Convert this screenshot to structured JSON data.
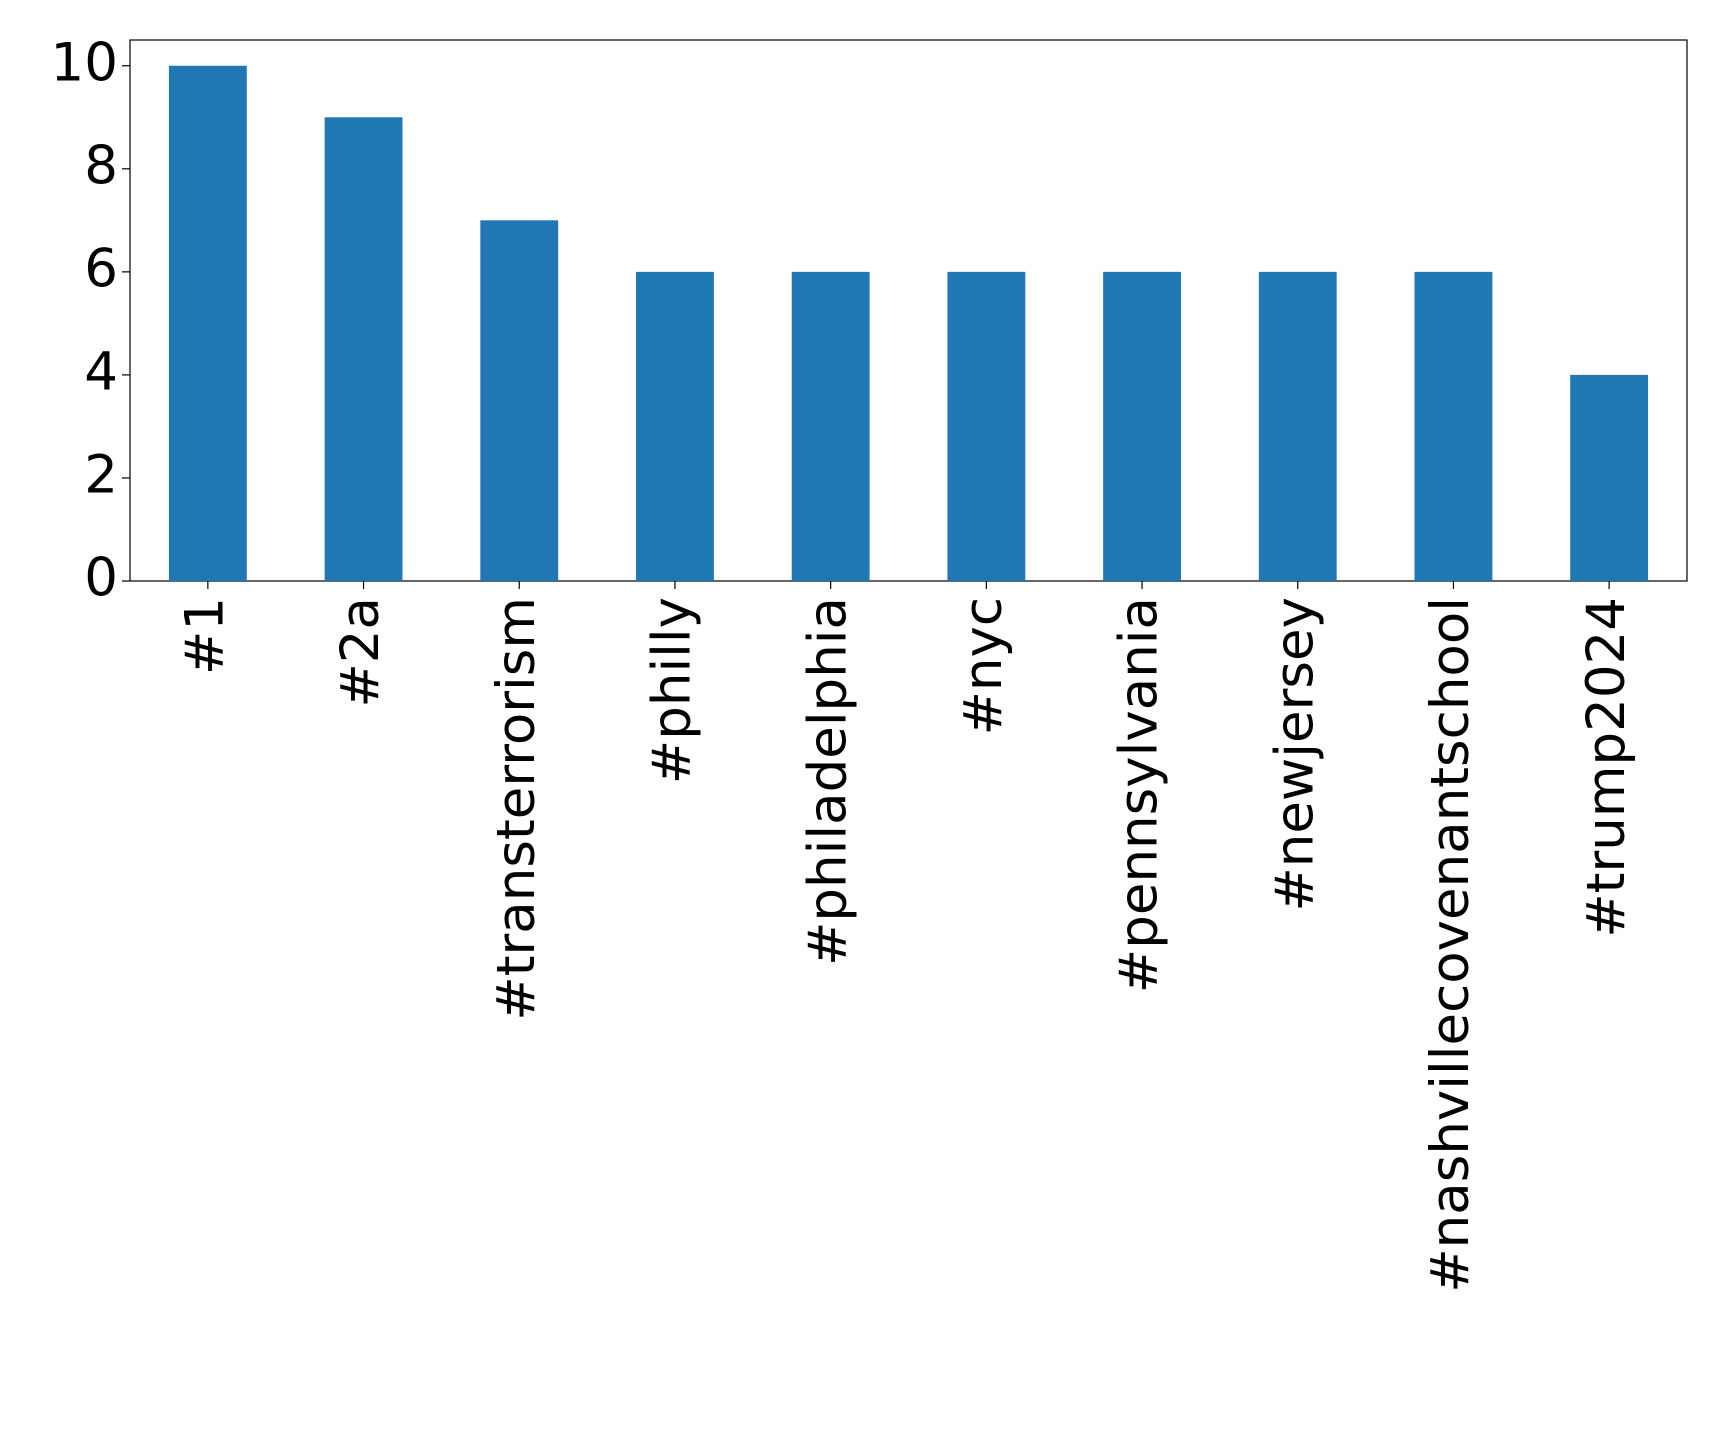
{
  "chart_data": {
    "type": "bar",
    "categories": [
      "#1",
      "#2a",
      "#transterrorism",
      "#philly",
      "#philadelphia",
      "#nyc",
      "#pennsylvania",
      "#newjersey",
      "#nashvillecovenantschool",
      "#trump2024"
    ],
    "values": [
      10,
      9,
      7,
      6,
      6,
      6,
      6,
      6,
      6,
      4
    ],
    "color": "#1f77b4",
    "ylim": [
      0,
      10.5
    ],
    "yticks": [
      0,
      2,
      4,
      6,
      8,
      10
    ]
  }
}
